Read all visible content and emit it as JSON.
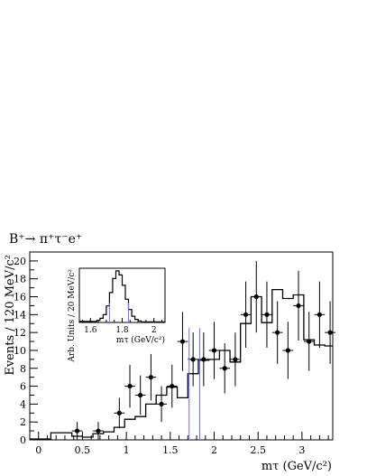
{
  "chart_data": [
    {
      "type": "line",
      "title": "B⁺→ π⁺τ⁻e⁺",
      "xlabel": "mτ (GeV/c²)",
      "ylabel": "Events / 120 MeV/c²",
      "xlim": [
        -0.1,
        3.35
      ],
      "ylim": [
        0,
        21
      ],
      "grid": false,
      "xticks": [
        0,
        0.5,
        1,
        1.5,
        2,
        2.5,
        3
      ],
      "xtick_labels": [
        "0",
        "0.5",
        "1",
        "1.5",
        "2",
        "2.5",
        "3"
      ],
      "yticks": [
        0,
        2,
        4,
        6,
        8,
        10,
        12,
        14,
        16,
        18,
        20
      ],
      "ytick_labels": [
        "0",
        "2",
        "4",
        "6",
        "8",
        "10",
        "12",
        "14",
        "16",
        "18",
        "20"
      ],
      "series": [
        {
          "kind": "histogram",
          "color": "#000000",
          "bin_edges": [
            -0.1,
            0.02,
            0.14,
            0.26,
            0.38,
            0.5,
            0.62,
            0.74,
            0.86,
            0.98,
            1.1,
            1.22,
            1.34,
            1.46,
            1.58,
            1.7,
            1.82,
            1.94,
            2.06,
            2.18,
            2.3,
            2.42,
            2.54,
            2.66,
            2.78,
            2.9,
            3.02,
            3.14,
            3.26,
            3.35
          ],
          "values": [
            0.1,
            0.1,
            0.8,
            0.8,
            0.4,
            0.3,
            0.7,
            0.9,
            1.4,
            2.3,
            2.6,
            4.0,
            5.0,
            5.9,
            4.7,
            7.4,
            8.9,
            9.0,
            10.0,
            8.7,
            13.0,
            16.0,
            13.1,
            16.8,
            15.8,
            16.2,
            11.2,
            10.6,
            10.5
          ]
        },
        {
          "kind": "points_with_errors",
          "color": "#000000",
          "x": [
            0.44,
            0.68,
            0.92,
            1.04,
            1.16,
            1.28,
            1.4,
            1.52,
            1.64,
            1.76,
            1.88,
            2.0,
            2.12,
            2.24,
            2.36,
            2.48,
            2.6,
            2.72,
            2.84,
            2.96,
            3.08,
            3.2,
            3.32
          ],
          "y": [
            1.0,
            1.0,
            3.0,
            6.0,
            5.0,
            7.0,
            4.0,
            6.0,
            11.0,
            9.0,
            9.0,
            10.0,
            8.0,
            9.0,
            14.0,
            16.0,
            14.0,
            12.0,
            10.0,
            15.0,
            11.0,
            14.0,
            12.0
          ],
          "yerr": [
            1.0,
            1.0,
            1.7,
            2.4,
            2.2,
            2.6,
            2.0,
            2.4,
            3.3,
            3.0,
            3.0,
            3.2,
            2.8,
            3.0,
            3.7,
            4.0,
            3.7,
            3.5,
            3.2,
            3.9,
            3.3,
            3.7,
            3.5
          ]
        },
        {
          "kind": "vertical_lines",
          "color": "#6b6bff",
          "x": [
            1.715,
            1.835
          ],
          "y_top": 12.5
        }
      ]
    },
    {
      "type": "line",
      "title": "",
      "xlabel": "mτ (GeV/c²)",
      "ylabel": "Arb. Units / 20 MeV/c²",
      "xlim": [
        1.53,
        2.07
      ],
      "ylim": [
        0,
        1.05
      ],
      "grid": false,
      "xticks": [
        1.6,
        1.8,
        2.0
      ],
      "xtick_labels": [
        "1.6",
        "1.8",
        "2"
      ],
      "series": [
        {
          "kind": "histogram",
          "color": "#000000",
          "bin_edges": [
            1.53,
            1.64,
            1.66,
            1.68,
            1.7,
            1.72,
            1.74,
            1.76,
            1.78,
            1.8,
            1.82,
            1.84,
            1.86,
            1.88,
            1.9,
            1.92,
            2.07
          ],
          "values": [
            0.02,
            0.04,
            0.08,
            0.15,
            0.32,
            0.58,
            0.85,
            1.0,
            0.92,
            0.72,
            0.45,
            0.25,
            0.12,
            0.06,
            0.03,
            0.01
          ]
        },
        {
          "kind": "vertical_lines",
          "color": "#6b6bff",
          "x": [
            1.72,
            1.84
          ],
          "y_top": 0.38
        }
      ]
    }
  ]
}
